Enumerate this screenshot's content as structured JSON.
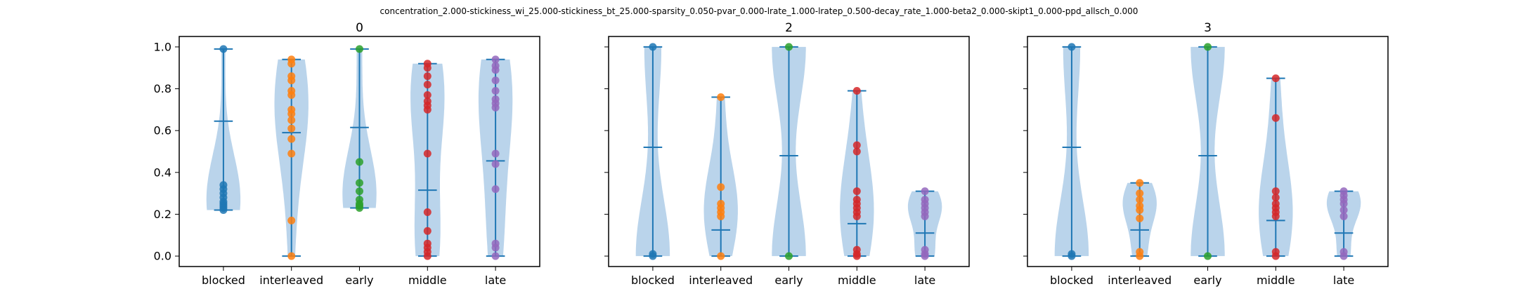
{
  "suptitle": "concentration_2.000-stickiness_wi_25.000-stickiness_bt_25.000-sparsity_0.050-pvar_0.000-lrate_1.000-lratep_0.500-decay_rate_1.000-beta2_0.000-skipt1_0.000-ppd_allsch_0.000",
  "chart_data": [
    {
      "type": "violin",
      "title": "0",
      "categories": [
        "blocked",
        "interleaved",
        "early",
        "middle",
        "late"
      ],
      "ylim": [
        0,
        1
      ],
      "yticks": [
        "0.0",
        "0.2",
        "0.4",
        "0.6",
        "0.8",
        "1.0"
      ],
      "means": [
        0.645,
        0.59,
        0.615,
        0.315,
        0.455
      ],
      "points": [
        [
          0.99,
          0.34,
          0.32,
          0.3,
          0.28,
          0.26,
          0.25,
          0.24,
          0.23,
          0.22
        ],
        [
          0.94,
          0.92,
          0.86,
          0.84,
          0.79,
          0.77,
          0.7,
          0.68,
          0.65,
          0.61,
          0.56,
          0.49,
          0.17,
          0.0
        ],
        [
          0.99,
          0.45,
          0.35,
          0.31,
          0.27,
          0.25,
          0.24,
          0.23
        ],
        [
          0.92,
          0.9,
          0.86,
          0.82,
          0.77,
          0.74,
          0.72,
          0.7,
          0.49,
          0.21,
          0.12,
          0.06,
          0.04,
          0.02,
          0.0
        ],
        [
          0.94,
          0.91,
          0.89,
          0.84,
          0.79,
          0.75,
          0.73,
          0.71,
          0.49,
          0.44,
          0.32,
          0.06,
          0.04,
          0.0
        ]
      ]
    },
    {
      "type": "violin",
      "title": "2",
      "categories": [
        "blocked",
        "interleaved",
        "early",
        "middle",
        "late"
      ],
      "ylim": [
        0,
        1
      ],
      "yticks": [
        "0.0",
        "0.2",
        "0.4",
        "0.6",
        "0.8",
        "1.0"
      ],
      "means": [
        0.52,
        0.125,
        0.48,
        0.155,
        0.11
      ],
      "points": [
        [
          1.0,
          0.01,
          0.0
        ],
        [
          0.76,
          0.33,
          0.25,
          0.23,
          0.21,
          0.19,
          0.0
        ],
        [
          1.0,
          0.0
        ],
        [
          0.79,
          0.53,
          0.5,
          0.31,
          0.27,
          0.25,
          0.23,
          0.21,
          0.19,
          0.03,
          0.01,
          0.0
        ],
        [
          0.31,
          0.27,
          0.25,
          0.23,
          0.21,
          0.19,
          0.03,
          0.01,
          0.0
        ]
      ]
    },
    {
      "type": "violin",
      "title": "3",
      "categories": [
        "blocked",
        "interleaved",
        "early",
        "middle",
        "late"
      ],
      "ylim": [
        0,
        1
      ],
      "yticks": [
        "0.0",
        "0.2",
        "0.4",
        "0.6",
        "0.8",
        "1.0"
      ],
      "means": [
        0.52,
        0.125,
        0.48,
        0.17,
        0.11
      ],
      "points": [
        [
          1.0,
          0.01,
          0.0
        ],
        [
          0.35,
          0.3,
          0.27,
          0.24,
          0.22,
          0.18,
          0.02,
          0.0
        ],
        [
          1.0,
          0.0
        ],
        [
          0.85,
          0.66,
          0.31,
          0.28,
          0.25,
          0.23,
          0.21,
          0.19,
          0.02,
          0.0
        ],
        [
          0.31,
          0.29,
          0.27,
          0.25,
          0.22,
          0.19,
          0.02,
          0.0
        ]
      ]
    }
  ],
  "colors": {
    "violin_fill": "#a9c9e6",
    "violin_line": "#1f77b4",
    "points": [
      "#1f77b4",
      "#ff7f0e",
      "#2ca02c",
      "#d62728",
      "#9467bd"
    ]
  }
}
